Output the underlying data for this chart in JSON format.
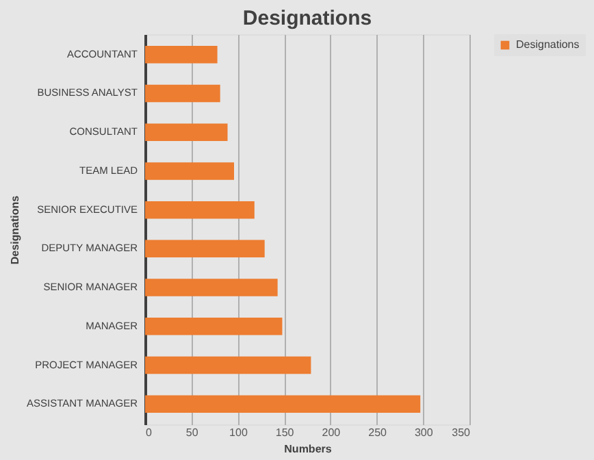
{
  "chart_data": {
    "type": "bar",
    "orientation": "horizontal",
    "title": "Designations",
    "xlabel": "Numbers",
    "ylabel": "Designations",
    "categories": [
      "ACCOUNTANT",
      "BUSINESS ANALYST",
      "CONSULTANT",
      "TEAM LEAD",
      "SENIOR EXECUTIVE",
      "DEPUTY MANAGER",
      "SENIOR MANAGER",
      "MANAGER",
      "PROJECT MANAGER",
      "ASSISTANT MANAGER"
    ],
    "series": [
      {
        "name": "Designations",
        "color": "#ed7d31",
        "values": [
          78,
          81,
          89,
          96,
          118,
          129,
          143,
          148,
          179,
          297
        ]
      }
    ],
    "xlim": [
      0,
      350
    ],
    "xticks": [
      0,
      50,
      100,
      150,
      200,
      250,
      300,
      350
    ],
    "grid": "x",
    "legend": "right"
  }
}
